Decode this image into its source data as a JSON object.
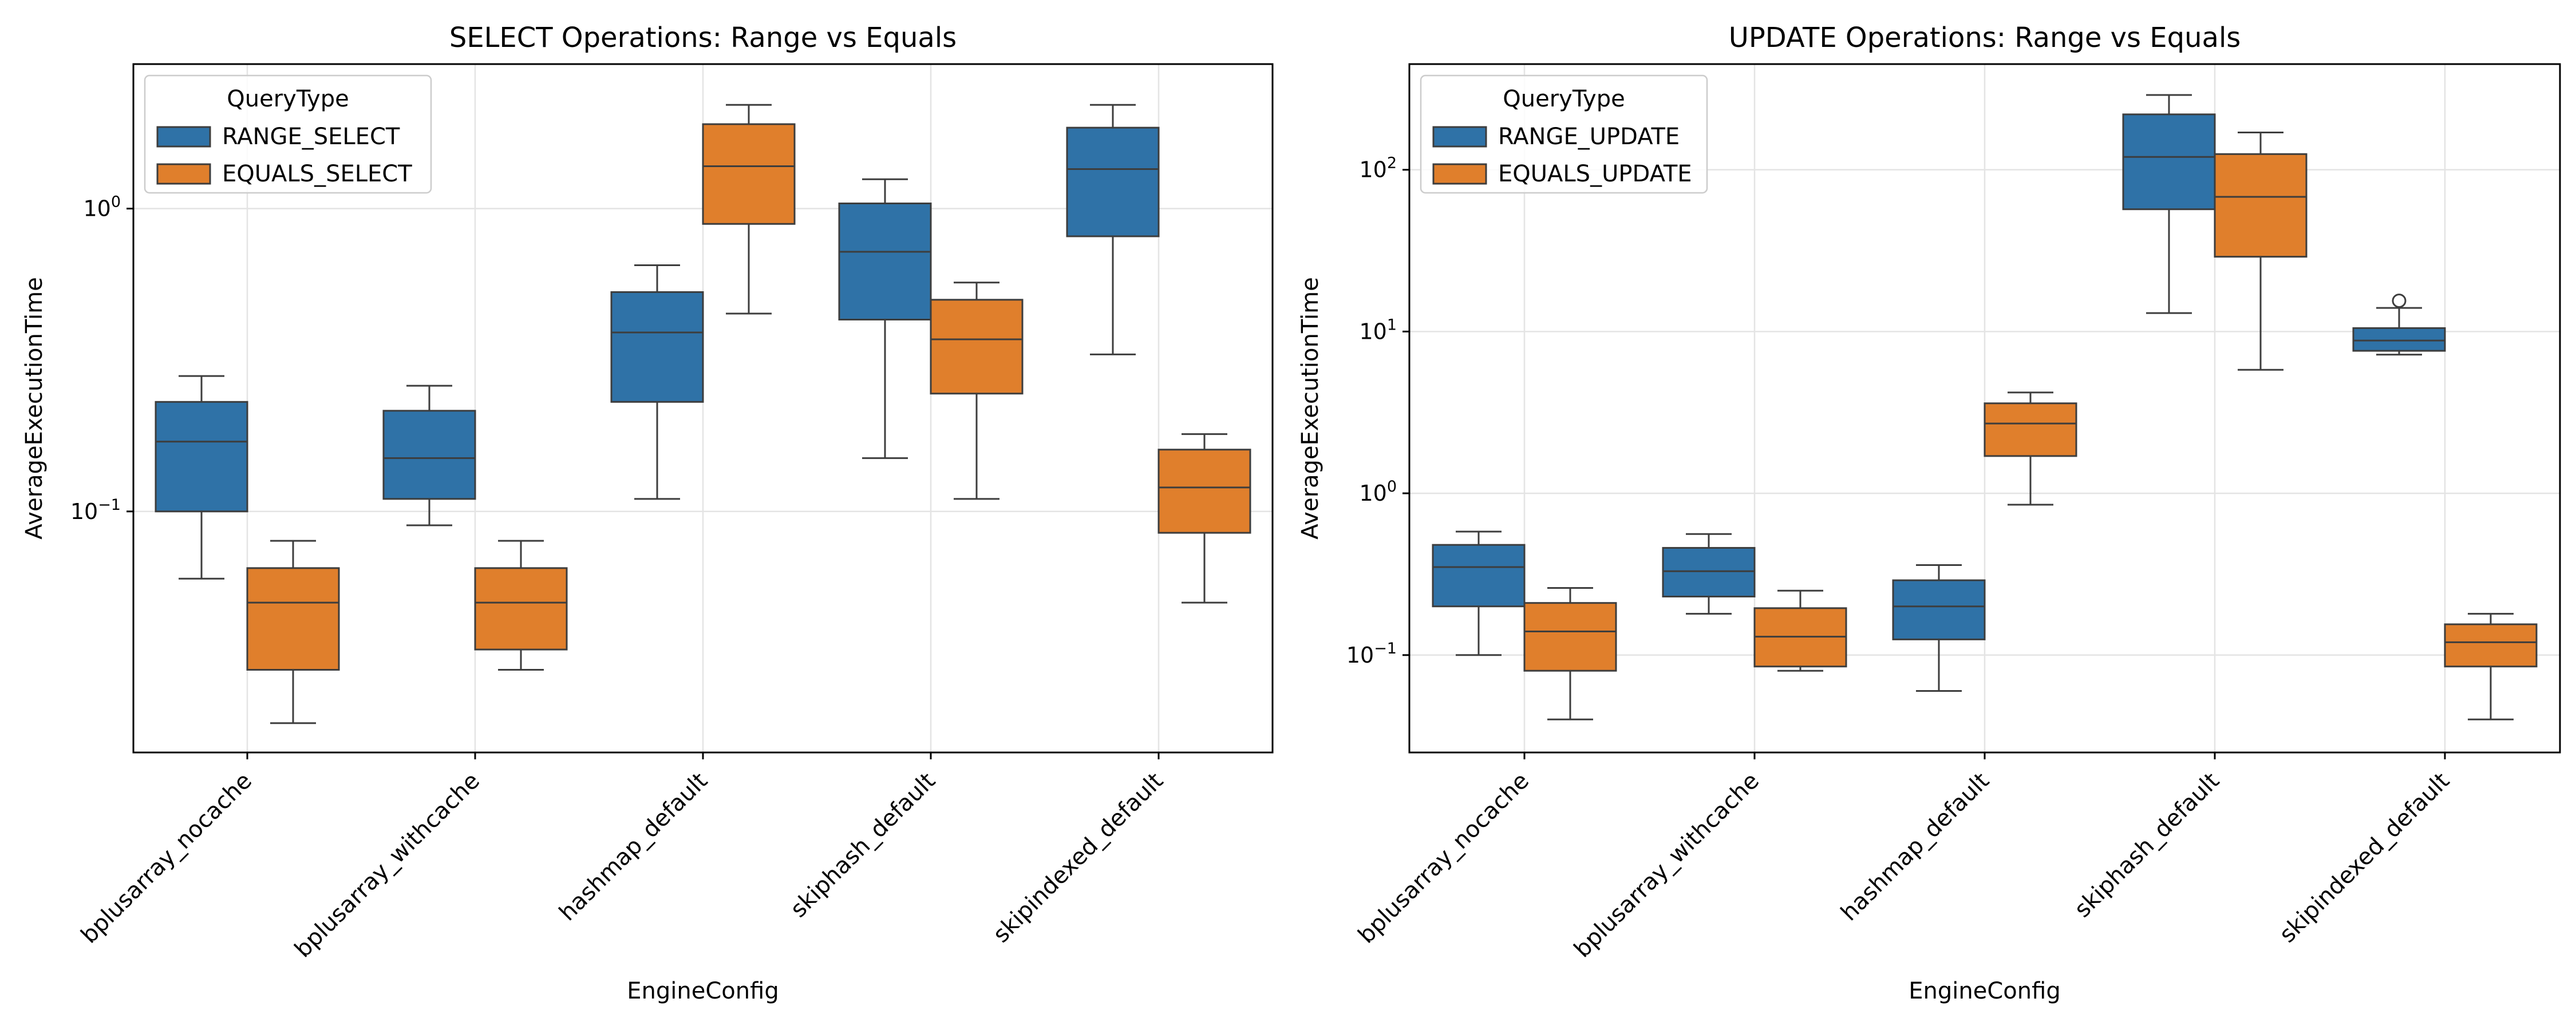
{
  "chart_data": [
    {
      "type": "box",
      "title": "SELECT Operations: Range vs Equals",
      "xlabel": "EngineConfig",
      "ylabel": "AverageExecutionTime",
      "yscale": "log",
      "ylim": [
        0.016,
        3.0
      ],
      "yticks": [
        {
          "value": 0.1,
          "base": "10",
          "exp": "−1"
        },
        {
          "value": 1,
          "base": "10",
          "exp": "0"
        }
      ],
      "grid": true,
      "legend_position": "upper-left",
      "legend_title": "QueryType",
      "categories": [
        "bplusarray_nocache",
        "bplusarray_withcache",
        "hashmap_default",
        "skiphash_default",
        "skipindexed_default"
      ],
      "series": [
        {
          "name": "RANGE_SELECT",
          "color": "#2f72a7",
          "boxes": [
            {
              "whislo": 0.06,
              "q1": 0.1,
              "med": 0.17,
              "q3": 0.23,
              "whishi": 0.28,
              "fliers": []
            },
            {
              "whislo": 0.09,
              "q1": 0.11,
              "med": 0.15,
              "q3": 0.215,
              "whishi": 0.26,
              "fliers": []
            },
            {
              "whislo": 0.11,
              "q1": 0.23,
              "med": 0.39,
              "q3": 0.53,
              "whishi": 0.65,
              "fliers": []
            },
            {
              "whislo": 0.15,
              "q1": 0.43,
              "med": 0.72,
              "q3": 1.04,
              "whishi": 1.25,
              "fliers": []
            },
            {
              "whislo": 0.33,
              "q1": 0.81,
              "med": 1.35,
              "q3": 1.85,
              "whishi": 2.2,
              "fliers": []
            }
          ]
        },
        {
          "name": "EQUALS_SELECT",
          "color": "#e07f2c",
          "boxes": [
            {
              "whislo": 0.02,
              "q1": 0.03,
              "med": 0.05,
              "q3": 0.065,
              "whishi": 0.08,
              "fliers": []
            },
            {
              "whislo": 0.03,
              "q1": 0.035,
              "med": 0.05,
              "q3": 0.065,
              "whishi": 0.08,
              "fliers": []
            },
            {
              "whislo": 0.45,
              "q1": 0.89,
              "med": 1.38,
              "q3": 1.9,
              "whishi": 2.2,
              "fliers": []
            },
            {
              "whislo": 0.11,
              "q1": 0.245,
              "med": 0.37,
              "q3": 0.5,
              "whishi": 0.57,
              "fliers": []
            },
            {
              "whislo": 0.05,
              "q1": 0.085,
              "med": 0.12,
              "q3": 0.16,
              "whishi": 0.18,
              "fliers": []
            }
          ]
        }
      ]
    },
    {
      "type": "box",
      "title": "UPDATE Operations: Range vs Equals",
      "xlabel": "EngineConfig",
      "ylabel": "AverageExecutionTime",
      "yscale": "log",
      "ylim": [
        0.025,
        450
      ],
      "yticks": [
        {
          "value": 0.1,
          "base": "10",
          "exp": "−1"
        },
        {
          "value": 1,
          "base": "10",
          "exp": "0"
        },
        {
          "value": 10,
          "base": "10",
          "exp": "1"
        },
        {
          "value": 100,
          "base": "10",
          "exp": "2"
        }
      ],
      "grid": true,
      "legend_position": "upper-left",
      "legend_title": "QueryType",
      "categories": [
        "bplusarray_nocache",
        "bplusarray_withcache",
        "hashmap_default",
        "skiphash_default",
        "skipindexed_default"
      ],
      "series": [
        {
          "name": "RANGE_UPDATE",
          "color": "#2f72a7",
          "boxes": [
            {
              "whislo": 0.1,
              "q1": 0.2,
              "med": 0.35,
              "q3": 0.48,
              "whishi": 0.58,
              "fliers": []
            },
            {
              "whislo": 0.18,
              "q1": 0.23,
              "med": 0.33,
              "q3": 0.46,
              "whishi": 0.56,
              "fliers": []
            },
            {
              "whislo": 0.06,
              "q1": 0.125,
              "med": 0.2,
              "q3": 0.29,
              "whishi": 0.36,
              "fliers": []
            },
            {
              "whislo": 13,
              "q1": 57,
              "med": 120,
              "q3": 220,
              "whishi": 290,
              "fliers": []
            },
            {
              "whislo": 7.2,
              "q1": 7.6,
              "med": 8.8,
              "q3": 10.5,
              "whishi": 14,
              "fliers": [
                15.5
              ]
            }
          ]
        },
        {
          "name": "EQUALS_UPDATE",
          "color": "#e07f2c",
          "boxes": [
            {
              "whislo": 0.04,
              "q1": 0.08,
              "med": 0.14,
              "q3": 0.21,
              "whishi": 0.26,
              "fliers": []
            },
            {
              "whislo": 0.08,
              "q1": 0.085,
              "med": 0.13,
              "q3": 0.195,
              "whishi": 0.25,
              "fliers": []
            },
            {
              "whislo": 0.85,
              "q1": 1.7,
              "med": 2.7,
              "q3": 3.6,
              "whishi": 4.2,
              "fliers": []
            },
            {
              "whislo": 5.8,
              "q1": 29,
              "med": 68,
              "q3": 125,
              "whishi": 170,
              "fliers": []
            },
            {
              "whislo": 0.04,
              "q1": 0.085,
              "med": 0.12,
              "q3": 0.155,
              "whishi": 0.18,
              "fliers": []
            }
          ]
        }
      ]
    }
  ]
}
